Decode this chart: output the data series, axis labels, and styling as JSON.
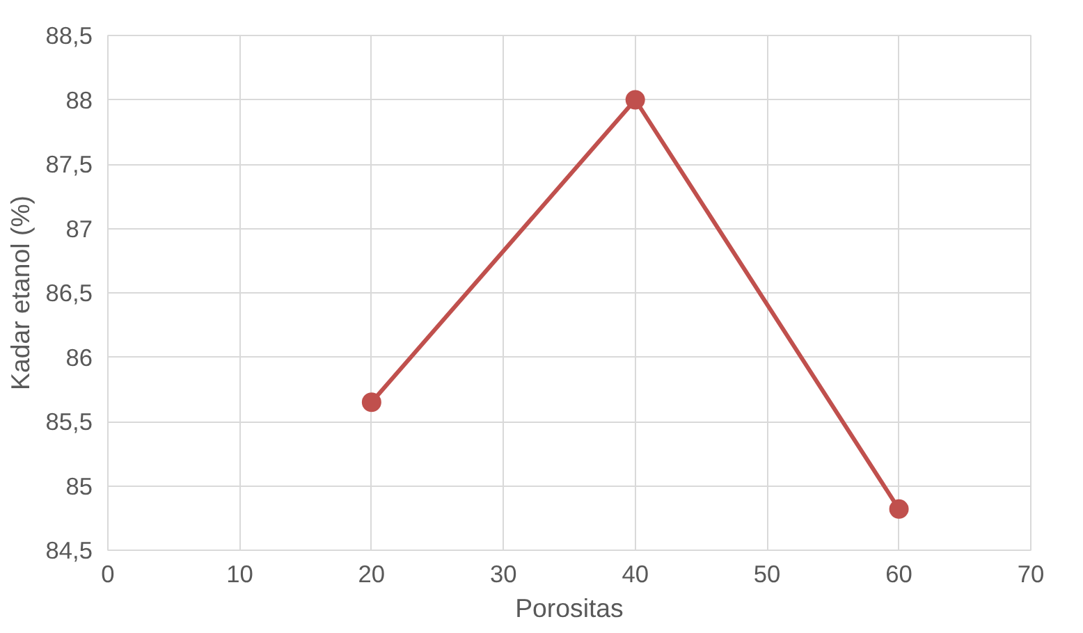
{
  "chart_data": {
    "type": "line",
    "xlabel": "Porositas",
    "ylabel": "Kadar etanol (%)",
    "x": [
      20,
      40,
      60
    ],
    "series": [
      {
        "color": "#c0504d",
        "values": [
          85.65,
          88.0,
          84.82
        ]
      }
    ],
    "xlim": [
      0,
      70
    ],
    "xticks": [
      0,
      10,
      20,
      30,
      40,
      50,
      60,
      70
    ],
    "ylim": [
      84.5,
      88.5
    ],
    "yticks": [
      {
        "value": 84.5,
        "label": "84,5"
      },
      85,
      {
        "value": 85.5,
        "label": "85,5"
      },
      86,
      {
        "value": 86.5,
        "label": "86,5"
      },
      87,
      {
        "value": 87.5,
        "label": "87,5"
      },
      88,
      {
        "value": 88.5,
        "label": "88,5"
      }
    ],
    "grid": true,
    "marker": "circle",
    "line_style": "solid"
  }
}
